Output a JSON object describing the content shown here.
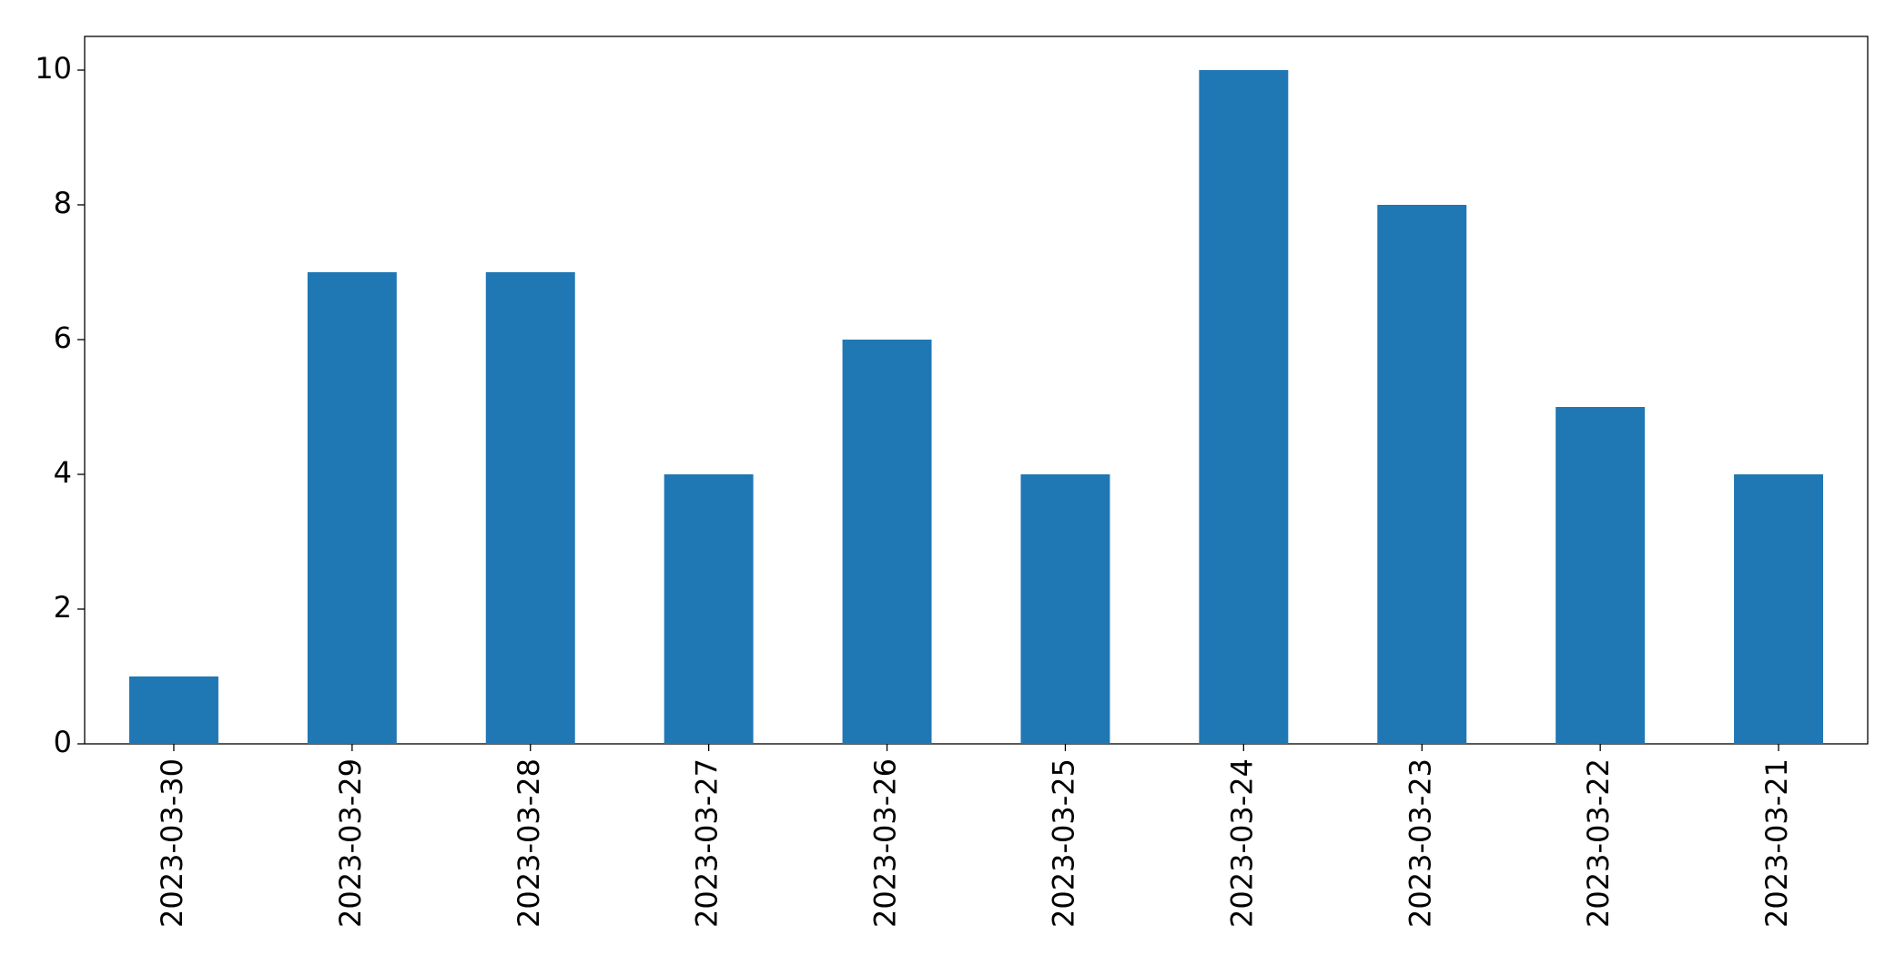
{
  "chart_data": {
    "type": "bar",
    "categories": [
      "2023-03-30",
      "2023-03-29",
      "2023-03-28",
      "2023-03-27",
      "2023-03-26",
      "2023-03-25",
      "2023-03-24",
      "2023-03-23",
      "2023-03-22",
      "2023-03-21"
    ],
    "values": [
      1,
      7,
      7,
      4,
      6,
      4,
      10,
      8,
      5,
      4
    ],
    "color": "#1f77b4",
    "ylim": [
      0,
      10.5
    ],
    "yticks": [
      0,
      2,
      4,
      6,
      8,
      10
    ],
    "grid": false
  }
}
